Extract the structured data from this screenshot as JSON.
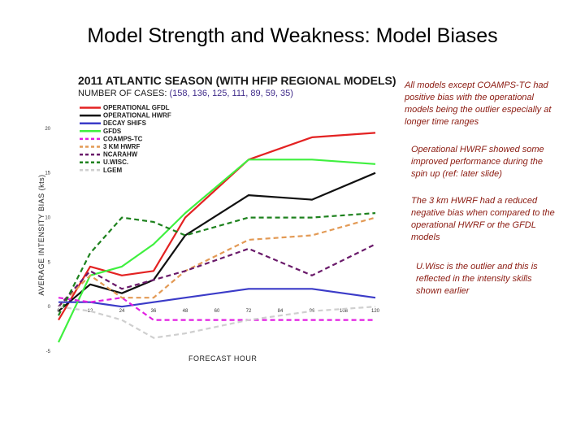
{
  "slide": {
    "title": "Model Strength and Weakness: Model Biases",
    "notes": [
      "All models except COAMPS-TC had positive bias with the operational models being the outlier especially at longer time ranges",
      "Operational HWRF showed some improved performance during the spin up (ref: later slide)",
      "The 3 km HWRF had a reduced negative bias when compared to the operational HWRF or the GFDL models",
      "U.Wisc is the outlier and this is reflected in the intensity skills shown earlier"
    ]
  },
  "chart_data": {
    "type": "line",
    "title": "2011 ATLANTIC SEASON (WITH HFIP REGIONAL MODELS)",
    "subtitle_prefix": "NUMBER OF CASES: ",
    "subtitle_cases": "(158, 136, 125, 111, 89, 59, 35)",
    "xlabel": "FORECAST HOUR",
    "ylabel": "AVERAGE INTENSITY BIAS (kts)",
    "x": [
      0,
      12,
      24,
      36,
      48,
      72,
      96,
      120
    ],
    "x_ticks": [
      "0",
      "12",
      "24",
      "36",
      "48",
      "60",
      "72",
      "84",
      "96",
      "108",
      "120"
    ],
    "xlim": [
      0,
      120
    ],
    "y_ticks": [
      "20",
      "15",
      "10",
      "5",
      "0",
      "-5"
    ],
    "ylim": [
      -5,
      22
    ],
    "grid": false,
    "legend_position": "top-left",
    "series": [
      {
        "name": "OPERATIONAL GFDL",
        "color": "#e32222",
        "dash": "solid",
        "values": [
          -1.5,
          4.5,
          3.5,
          4,
          10,
          16.5,
          19,
          19.5
        ]
      },
      {
        "name": "OPERATIONAL HWRF",
        "color": "#111111",
        "dash": "solid",
        "values": [
          -0.5,
          2.5,
          1.5,
          3,
          8,
          12.5,
          12,
          15
        ]
      },
      {
        "name": "DECAY SHIFS",
        "color": "#3b3bc8",
        "dash": "solid",
        "values": [
          0.5,
          0.5,
          0,
          0.5,
          1,
          2,
          2,
          1
        ]
      },
      {
        "name": "GFDS",
        "color": "#3ff03f",
        "dash": "solid",
        "values": [
          -4,
          3.5,
          4.5,
          7,
          10.5,
          16.5,
          16.5,
          16
        ]
      },
      {
        "name": "COAMPS-TC",
        "color": "#e21ee2",
        "dash": "dashed",
        "values": [
          1,
          0.5,
          1,
          -1.5,
          -1.5,
          -1.5,
          -1.5,
          -1.5
        ]
      },
      {
        "name": "3 KM HWRF",
        "color": "#e39a55",
        "dash": "dashed",
        "values": [
          0,
          3.5,
          1,
          1,
          4,
          7.5,
          8,
          10
        ]
      },
      {
        "name": "NCARAHW",
        "color": "#6a1a6a",
        "dash": "dashed",
        "values": [
          0,
          4,
          2,
          3,
          4,
          6.5,
          3.5,
          7
        ]
      },
      {
        "name": "U.WISC.",
        "color": "#1e821e",
        "dash": "dashed",
        "values": [
          -1,
          6,
          10,
          9.5,
          8,
          10,
          10,
          10.5
        ]
      },
      {
        "name": "LGEM",
        "color": "#cfcfcf",
        "dash": "dashed",
        "values": [
          0,
          -0.5,
          -1.5,
          -3.5,
          -3,
          -1.5,
          -0.5,
          0
        ]
      }
    ]
  }
}
